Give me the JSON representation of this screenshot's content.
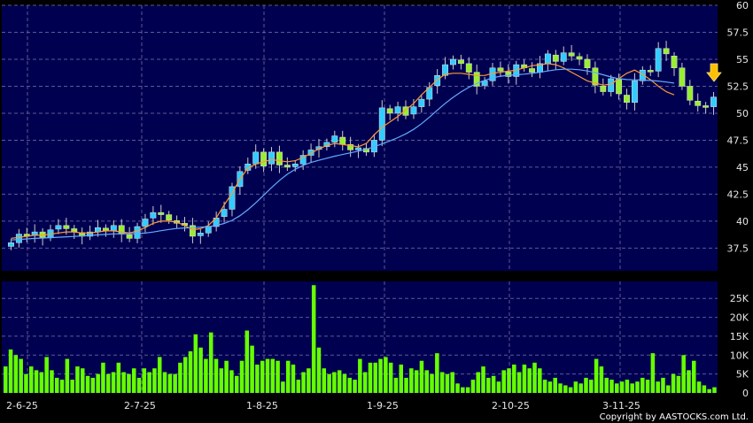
{
  "chart_data": [
    {
      "type": "candlestick",
      "title": "",
      "xlabel": "",
      "ylabel": "",
      "ylim": [
        35.4,
        60
      ],
      "y_ticks": [
        "60",
        "57.5",
        "55",
        "52.5",
        "50",
        "47.5",
        "45",
        "42.5",
        "40",
        "37.5"
      ],
      "y_tick_values": [
        60,
        57.5,
        55,
        52.5,
        50,
        47.5,
        45,
        42.5,
        40,
        37.5
      ],
      "grid": true,
      "colors": {
        "background": "#000050",
        "up": "#33ccff",
        "down": "#99ee33",
        "ma_short": "#ff9933",
        "ma_long": "#66aaff",
        "arrow": "#ffc000"
      },
      "closes": [
        38.0,
        38.8,
        38.6,
        39.0,
        38.5,
        39.2,
        39.6,
        39.3,
        39.0,
        38.6,
        39.0,
        39.4,
        39.1,
        39.6,
        38.8,
        38.4,
        39.5,
        40.2,
        40.8,
        40.6,
        40.1,
        39.8,
        39.6,
        38.6,
        38.9,
        39.5,
        40.3,
        41.1,
        43.2,
        44.6,
        45.3,
        46.4,
        45.1,
        46.4,
        45.2,
        45.0,
        45.3,
        46.1,
        46.6,
        46.9,
        47.3,
        47.9,
        47.1,
        46.6,
        46.8,
        46.4,
        47.5,
        50.5,
        50.0,
        50.6,
        49.8,
        50.6,
        51.3,
        52.4,
        53.5,
        54.5,
        55.0,
        54.6,
        53.8,
        52.5,
        53.0,
        54.2,
        53.9,
        53.4,
        54.5,
        54.2,
        53.8,
        54.6,
        55.5,
        54.8,
        55.6,
        55.3,
        55.0,
        54.2,
        52.6,
        52.0,
        53.2,
        51.8,
        51.0,
        53.0,
        54.0,
        53.9,
        56.0,
        55.5,
        54.2,
        52.5,
        51.2,
        50.7,
        50.6,
        51.5
      ],
      "ma_short": [
        38.4,
        38.5,
        38.6,
        38.7,
        38.7,
        38.8,
        38.9,
        39.0,
        39.0,
        38.9,
        38.9,
        39.0,
        39.1,
        39.1,
        39.0,
        38.9,
        39.1,
        39.4,
        39.8,
        40.0,
        40.0,
        39.9,
        39.6,
        39.2,
        39.3,
        39.6,
        40.3,
        41.5,
        42.6,
        43.9,
        44.9,
        45.3,
        45.5,
        45.7,
        45.6,
        45.5,
        45.6,
        45.9,
        46.3,
        46.7,
        47.0,
        47.2,
        47.1,
        47.0,
        46.9,
        47.2,
        48.0,
        48.7,
        49.2,
        49.7,
        50.3,
        50.9,
        51.7,
        52.4,
        53.1,
        53.6,
        53.7,
        53.7,
        53.6,
        53.5,
        53.5,
        53.7,
        53.8,
        53.9,
        54.0,
        54.2,
        54.4,
        54.5,
        54.6,
        54.5,
        54.2,
        53.8,
        53.4,
        53.0,
        52.8,
        52.6,
        52.7,
        53.2,
        53.7,
        54.0,
        53.6,
        53.1,
        52.5,
        52.0,
        51.7
      ]
    },
    {
      "type": "bar",
      "title": "",
      "ylabel": "",
      "ylim": [
        0,
        29500
      ],
      "y_ticks": [
        "25K",
        "20K",
        "15K",
        "10K",
        "5K",
        "0"
      ],
      "y_tick_values": [
        25000,
        20000,
        15000,
        10000,
        5000,
        0
      ],
      "x_ticks": [
        "2-6-25",
        "2-7-25",
        "1-8-25",
        "1-9-25",
        "2-10-25",
        "3-11-25"
      ],
      "grid": true,
      "colors": {
        "bar": "#66ff00",
        "background": "#000050"
      },
      "values": [
        7000,
        11500,
        10000,
        9000,
        5000,
        7000,
        6000,
        5500,
        9500,
        6000,
        4000,
        3500,
        9000,
        3500,
        7000,
        6500,
        4500,
        4000,
        5000,
        8000,
        5000,
        5500,
        8000,
        5500,
        5000,
        6500,
        4000,
        6500,
        5500,
        6500,
        9500,
        5500,
        5000,
        5000,
        8000,
        9500,
        11000,
        15500,
        12000,
        9000,
        16000,
        9000,
        6500,
        8500,
        6000,
        4500,
        8500,
        16500,
        12500,
        7500,
        8500,
        9000,
        9000,
        8500,
        3000,
        8500,
        7500,
        3500,
        5500,
        6500,
        28500,
        12000,
        6500,
        5000,
        5500,
        6000,
        5000,
        4000,
        3500,
        9000,
        5500,
        8000,
        8000,
        9000,
        9500,
        8000,
        4000,
        7500,
        4000,
        6500,
        6000,
        8500,
        6000,
        5000,
        10500,
        5500,
        5000,
        5500,
        2500,
        1500,
        1500,
        3500,
        5500,
        7000,
        4000,
        4500,
        3000,
        6000,
        6500,
        7500,
        5500,
        7500,
        6500,
        8000,
        6500,
        3500,
        3000,
        4000,
        2500,
        2000,
        1500,
        3000,
        2500,
        4000,
        3500,
        9000,
        7000,
        4000,
        3500,
        2500,
        3000,
        3500,
        2500,
        3000,
        4000,
        3500,
        10500,
        3000,
        4000,
        2000,
        5000,
        4500,
        10000,
        6000,
        8500,
        3000,
        2000,
        1000,
        1500
      ]
    }
  ],
  "footer": {
    "copyright": "Copyright by AASTOCKS.com Ltd."
  }
}
